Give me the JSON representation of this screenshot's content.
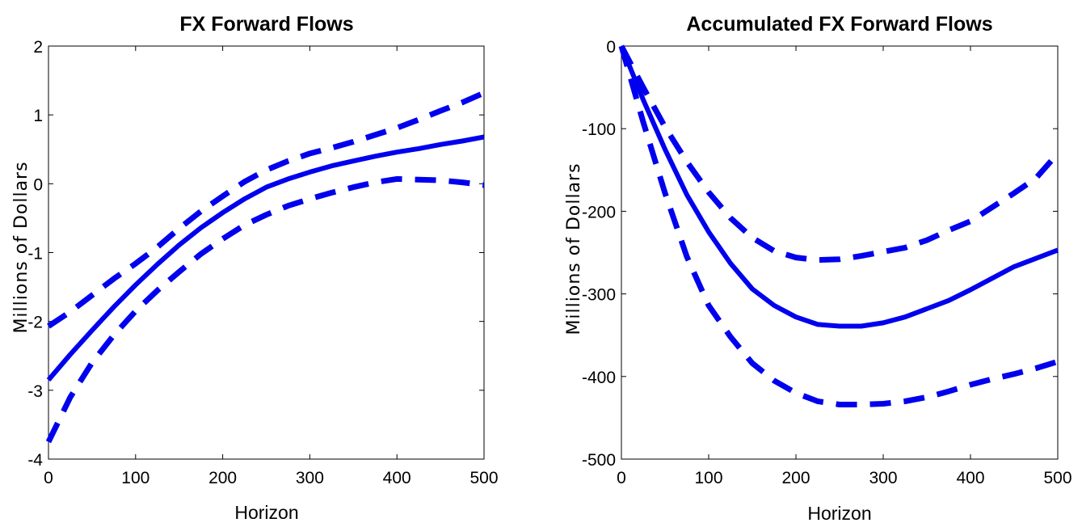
{
  "chart_data": [
    {
      "type": "line",
      "title": "FX Forward Flows",
      "xlabel": "Horizon",
      "ylabel": "Millions of Dollars",
      "xlim": [
        0,
        500
      ],
      "ylim": [
        -4,
        2
      ],
      "xticks": [
        0,
        100,
        200,
        300,
        400,
        500
      ],
      "yticks": [
        2,
        1,
        0,
        -1,
        -2,
        -3,
        -4
      ],
      "xtick_labels": [
        "0",
        "100",
        "200",
        "300",
        "400",
        "500"
      ],
      "ytick_labels": [
        "2",
        "1",
        "0",
        "-1",
        "-2",
        "-3",
        "-4"
      ],
      "grid": false,
      "color": "#0000ee",
      "series": [
        {
          "style": "solid",
          "x": [
            0,
            25,
            50,
            75,
            100,
            125,
            150,
            175,
            200,
            225,
            250,
            275,
            300,
            325,
            350,
            375,
            400,
            425,
            450,
            475,
            500
          ],
          "y": [
            -2.85,
            -2.48,
            -2.13,
            -1.79,
            -1.47,
            -1.17,
            -0.89,
            -0.64,
            -0.42,
            -0.22,
            -0.05,
            0.07,
            0.17,
            0.26,
            0.33,
            0.4,
            0.46,
            0.51,
            0.57,
            0.62,
            0.68
          ]
        },
        {
          "style": "dashed",
          "x": [
            0,
            25,
            50,
            75,
            100,
            125,
            150,
            175,
            200,
            225,
            250,
            275,
            300,
            325,
            350,
            375,
            400,
            425,
            450,
            475,
            500
          ],
          "y": [
            -2.07,
            -1.86,
            -1.62,
            -1.38,
            -1.16,
            -0.92,
            -0.65,
            -0.4,
            -0.18,
            0.03,
            0.2,
            0.33,
            0.44,
            0.52,
            0.61,
            0.71,
            0.81,
            0.93,
            1.06,
            1.18,
            1.32
          ]
        },
        {
          "style": "dashed",
          "x": [
            0,
            25,
            50,
            75,
            100,
            125,
            150,
            175,
            200,
            225,
            250,
            275,
            300,
            325,
            350,
            375,
            400,
            425,
            450,
            475,
            500
          ],
          "y": [
            -3.75,
            -3.1,
            -2.6,
            -2.2,
            -1.85,
            -1.55,
            -1.28,
            -1.02,
            -0.8,
            -0.6,
            -0.45,
            -0.32,
            -0.22,
            -0.13,
            -0.05,
            0.02,
            0.07,
            0.06,
            0.05,
            0.02,
            -0.02
          ]
        }
      ]
    },
    {
      "type": "line",
      "title": "Accumulated FX Forward Flows",
      "xlabel": "Horizon",
      "ylabel": "Millions of Dollars",
      "xlim": [
        0,
        500
      ],
      "ylim": [
        -500,
        0
      ],
      "xticks": [
        0,
        100,
        200,
        300,
        400,
        500
      ],
      "yticks": [
        0,
        -100,
        -200,
        -300,
        -400,
        -500
      ],
      "xtick_labels": [
        "0",
        "100",
        "200",
        "300",
        "400",
        "500"
      ],
      "ytick_labels": [
        "0",
        "-100",
        "-200",
        "-300",
        "-400",
        "-500"
      ],
      "grid": false,
      "color": "#0000ee",
      "series": [
        {
          "style": "solid",
          "x": [
            0,
            25,
            50,
            75,
            100,
            125,
            150,
            175,
            200,
            225,
            250,
            275,
            300,
            325,
            350,
            375,
            400,
            425,
            450,
            475,
            500
          ],
          "y": [
            0,
            -65,
            -125,
            -180,
            -225,
            -263,
            -294,
            -314,
            -328,
            -337,
            -339,
            -339,
            -335,
            -328,
            -318,
            -308,
            -295,
            -281,
            -267,
            -257,
            -247
          ]
        },
        {
          "style": "dashed",
          "x": [
            0,
            25,
            50,
            75,
            100,
            125,
            150,
            175,
            200,
            225,
            250,
            275,
            300,
            325,
            350,
            375,
            400,
            425,
            450,
            475,
            500
          ],
          "y": [
            0,
            -50,
            -98,
            -140,
            -177,
            -208,
            -232,
            -248,
            -256,
            -259,
            -258,
            -254,
            -249,
            -244,
            -235,
            -223,
            -212,
            -195,
            -178,
            -160,
            -130
          ]
        },
        {
          "style": "dashed",
          "x": [
            0,
            25,
            50,
            75,
            100,
            125,
            150,
            175,
            200,
            225,
            250,
            275,
            300,
            325,
            350,
            375,
            400,
            425,
            450,
            475,
            500
          ],
          "y": [
            0,
            -92,
            -178,
            -255,
            -314,
            -352,
            -384,
            -405,
            -420,
            -430,
            -434,
            -434,
            -433,
            -430,
            -425,
            -418,
            -410,
            -403,
            -397,
            -390,
            -382
          ]
        }
      ]
    }
  ]
}
